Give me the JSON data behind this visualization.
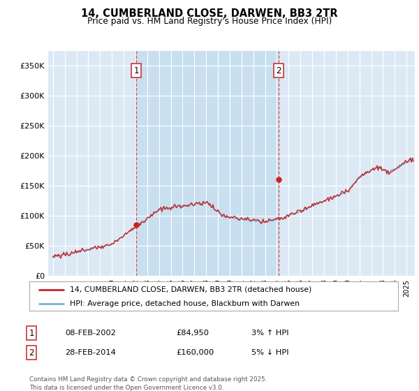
{
  "title": "14, CUMBERLAND CLOSE, DARWEN, BB3 2TR",
  "subtitle": "Price paid vs. HM Land Registry's House Price Index (HPI)",
  "legend_line1": "14, CUMBERLAND CLOSE, DARWEN, BB3 2TR (detached house)",
  "legend_line2": "HPI: Average price, detached house, Blackburn with Darwen",
  "annotation1_date": "08-FEB-2002",
  "annotation1_price": "£84,950",
  "annotation1_hpi": "3% ↑ HPI",
  "annotation2_date": "28-FEB-2014",
  "annotation2_price": "£160,000",
  "annotation2_hpi": "5% ↓ HPI",
  "footer": "Contains HM Land Registry data © Crown copyright and database right 2025.\nThis data is licensed under the Open Government Licence v3.0.",
  "sale1_year": 2002.083,
  "sale1_value": 84950,
  "sale2_year": 2014.167,
  "sale2_value": 160000,
  "hpi_color": "#7ab3d4",
  "price_color": "#cc2222",
  "vline_color": "#cc3333",
  "shade_color": "#c8dff0",
  "bg_color": "#dce9f5",
  "ylim": [
    0,
    375000
  ],
  "yticks": [
    0,
    50000,
    100000,
    150000,
    200000,
    250000,
    300000,
    350000
  ],
  "ytick_labels": [
    "£0",
    "£50K",
    "£100K",
    "£150K",
    "£200K",
    "£250K",
    "£300K",
    "£350K"
  ],
  "xlim_start": 1994.6,
  "xlim_end": 2025.7
}
